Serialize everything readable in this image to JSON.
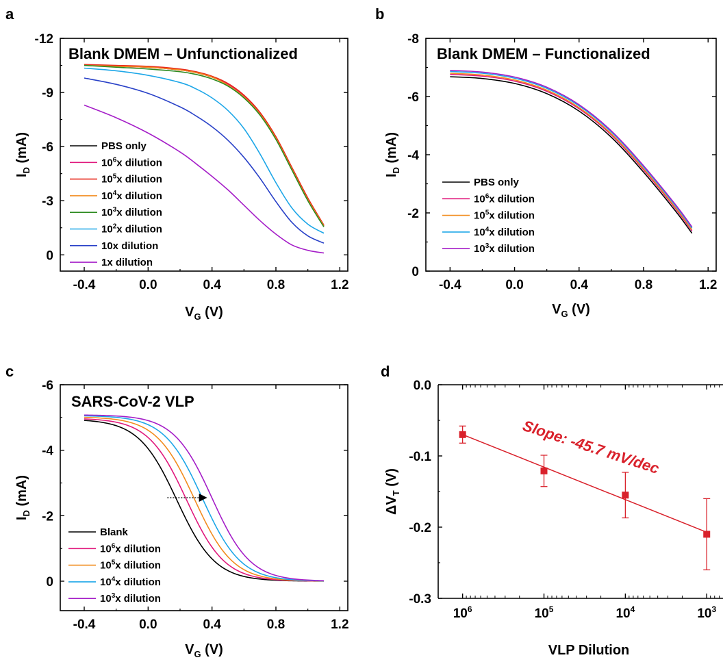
{
  "chart_data": [
    {
      "panel": "a",
      "type": "line",
      "title": "Blank DMEM – Unfunctionalized",
      "xlabel": "V",
      "xlabel_sub": "G",
      "xlabel_unit": "(V)",
      "ylabel": "I",
      "ylabel_sub": "D",
      "ylabel_unit": "(mA)",
      "xlim": [
        -0.55,
        1.25
      ],
      "ylim": [
        0.9,
        -12
      ],
      "xticks": [
        -0.4,
        0.0,
        0.4,
        0.8,
        1.2
      ],
      "xtick_labels": [
        "-0.4",
        "0.0",
        "0.4",
        "0.8",
        "1.2"
      ],
      "yticks": [
        0,
        -3,
        -6,
        -9,
        -12
      ],
      "ytick_labels": [
        "0",
        "-3",
        "-6",
        "-9",
        "-12"
      ],
      "legend_position": "bottom-left",
      "x": [
        -0.4,
        -0.2,
        0.0,
        0.2,
        0.3,
        0.4,
        0.5,
        0.6,
        0.7,
        0.8,
        0.9,
        1.0,
        1.1
      ],
      "series": [
        {
          "name": "PBS only",
          "base": "PBS only",
          "sup": "",
          "rest": "",
          "color": "#000000",
          "values": [
            -10.5,
            -10.45,
            -10.4,
            -10.25,
            -10.1,
            -9.85,
            -9.45,
            -8.8,
            -7.85,
            -6.5,
            -4.8,
            -3.1,
            -1.6
          ]
        },
        {
          "name": "10^6x dilution",
          "base": "10",
          "sup": "6",
          "rest": "x dilution",
          "color": "#e0197d",
          "values": [
            -10.5,
            -10.45,
            -10.4,
            -10.25,
            -10.1,
            -9.85,
            -9.45,
            -8.8,
            -7.85,
            -6.5,
            -4.8,
            -3.1,
            -1.6
          ]
        },
        {
          "name": "10^5x dilution",
          "base": "10",
          "sup": "5",
          "rest": "x dilution",
          "color": "#e8291c",
          "values": [
            -10.55,
            -10.5,
            -10.45,
            -10.3,
            -10.15,
            -9.9,
            -9.5,
            -8.85,
            -7.9,
            -6.55,
            -4.85,
            -3.15,
            -1.65
          ]
        },
        {
          "name": "10^4x dilution",
          "base": "10",
          "sup": "4",
          "rest": "x dilution",
          "color": "#f28c1e",
          "values": [
            -10.5,
            -10.45,
            -10.4,
            -10.25,
            -10.1,
            -9.85,
            -9.4,
            -8.75,
            -7.8,
            -6.45,
            -4.75,
            -3.05,
            -1.6
          ]
        },
        {
          "name": "10^3x dilution",
          "base": "10",
          "sup": "3",
          "rest": "x dilution",
          "color": "#2e8b20",
          "values": [
            -10.5,
            -10.4,
            -10.3,
            -10.15,
            -10.0,
            -9.75,
            -9.35,
            -8.7,
            -7.75,
            -6.4,
            -4.7,
            -3.0,
            -1.55
          ]
        },
        {
          "name": "10^2x dilution",
          "base": "10",
          "sup": "2",
          "rest": "x dilution",
          "color": "#1ea7e8",
          "values": [
            -10.35,
            -10.2,
            -9.95,
            -9.55,
            -9.2,
            -8.7,
            -8.0,
            -7.0,
            -5.6,
            -4.0,
            -2.6,
            -1.7,
            -1.2
          ]
        },
        {
          "name": "10x dilution",
          "base": "10x dilution",
          "sup": "",
          "rest": "",
          "color": "#2a42c8",
          "values": [
            -9.8,
            -9.45,
            -8.95,
            -8.2,
            -7.7,
            -7.1,
            -6.35,
            -5.4,
            -4.25,
            -2.95,
            -1.8,
            -1.05,
            -0.65
          ]
        },
        {
          "name": "1x dilution",
          "base": "1x dilution",
          "sup": "",
          "rest": "",
          "color": "#a51ec8",
          "values": [
            -8.3,
            -7.6,
            -6.75,
            -5.7,
            -5.05,
            -4.35,
            -3.6,
            -2.75,
            -1.9,
            -1.15,
            -0.55,
            -0.25,
            -0.1
          ]
        }
      ]
    },
    {
      "panel": "b",
      "type": "line",
      "title": "Blank DMEM – Functionalized",
      "xlabel": "V",
      "xlabel_sub": "G",
      "xlabel_unit": "(V)",
      "ylabel": "I",
      "ylabel_sub": "D",
      "ylabel_unit": "(mA)",
      "xlim": [
        -0.55,
        1.25
      ],
      "ylim": [
        0,
        -8
      ],
      "xticks": [
        -0.4,
        0.0,
        0.4,
        0.8,
        1.2
      ],
      "xtick_labels": [
        "-0.4",
        "0.0",
        "0.4",
        "0.8",
        "1.2"
      ],
      "yticks": [
        0,
        -2,
        -4,
        -6,
        -8
      ],
      "ytick_labels": [
        "0",
        "-2",
        "-4",
        "-6",
        "-8"
      ],
      "legend_position": "bottom-left",
      "x": [
        -0.4,
        -0.2,
        0.0,
        0.2,
        0.4,
        0.6,
        0.8,
        1.0,
        1.1
      ],
      "series": [
        {
          "name": "PBS only",
          "base": "PBS only",
          "sup": "",
          "rest": "",
          "color": "#000000",
          "values": [
            -6.68,
            -6.62,
            -6.45,
            -6.1,
            -5.5,
            -4.6,
            -3.4,
            -2.05,
            -1.3
          ]
        },
        {
          "name": "10^6x dilution",
          "base": "10",
          "sup": "6",
          "rest": "x dilution",
          "color": "#e0197d",
          "values": [
            -6.76,
            -6.7,
            -6.53,
            -6.18,
            -5.58,
            -4.68,
            -3.48,
            -2.13,
            -1.38
          ]
        },
        {
          "name": "10^5x dilution",
          "base": "10",
          "sup": "5",
          "rest": "x dilution",
          "color": "#f28c1e",
          "values": [
            -6.8,
            -6.74,
            -6.57,
            -6.22,
            -5.62,
            -4.72,
            -3.52,
            -2.17,
            -1.42
          ]
        },
        {
          "name": "10^4x dilution",
          "base": "10",
          "sup": "4",
          "rest": "x dilution",
          "color": "#1ea7e8",
          "values": [
            -6.86,
            -6.8,
            -6.63,
            -6.28,
            -5.68,
            -4.78,
            -3.58,
            -2.23,
            -1.48
          ]
        },
        {
          "name": "10^3x dilution",
          "base": "10",
          "sup": "3",
          "rest": "x dilution",
          "color": "#a51ec8",
          "values": [
            -6.9,
            -6.84,
            -6.67,
            -6.32,
            -5.72,
            -4.82,
            -3.62,
            -2.27,
            -1.52
          ]
        }
      ]
    },
    {
      "panel": "c",
      "type": "line",
      "title": "SARS-CoV-2 VLP",
      "xlabel": "V",
      "xlabel_sub": "G",
      "xlabel_unit": "(V)",
      "ylabel": "I",
      "ylabel_sub": "D",
      "ylabel_unit": "(mA)",
      "xlim": [
        -0.55,
        1.25
      ],
      "ylim": [
        0.9,
        -6
      ],
      "xticks": [
        -0.4,
        0.0,
        0.4,
        0.8,
        1.2
      ],
      "xtick_labels": [
        "-0.4",
        "0.0",
        "0.4",
        "0.8",
        "1.2"
      ],
      "yticks": [
        0,
        -2,
        -4,
        -6
      ],
      "ytick_labels": [
        "0",
        "-2",
        "-4",
        "-6"
      ],
      "legend_position": "bottom-left",
      "sigmoid_model": "I = -A / (1 + exp((V - V0)/k))",
      "x_range": [
        -0.4,
        1.1
      ],
      "arrow": {
        "x_start": 0.12,
        "x_end": 0.37,
        "y": -2.55
      },
      "series": [
        {
          "name": "Blank",
          "base": "Blank",
          "sup": "",
          "rest": "",
          "color": "#000000",
          "A": 4.95,
          "V0": 0.18,
          "k": 0.12
        },
        {
          "name": "10^6x dilution",
          "base": "10",
          "sup": "6",
          "rest": "x dilution",
          "color": "#e0197d",
          "A": 4.98,
          "V0": 0.24,
          "k": 0.12
        },
        {
          "name": "10^5x dilution",
          "base": "10",
          "sup": "5",
          "rest": "x dilution",
          "color": "#f28c1e",
          "A": 5.02,
          "V0": 0.29,
          "k": 0.12
        },
        {
          "name": "10^4x dilution",
          "base": "10",
          "sup": "4",
          "rest": "x dilution",
          "color": "#1ea7e8",
          "A": 5.06,
          "V0": 0.34,
          "k": 0.12
        },
        {
          "name": "10^3x dilution",
          "base": "10",
          "sup": "3",
          "rest": "x dilution",
          "color": "#a51ec8",
          "A": 5.08,
          "V0": 0.4,
          "k": 0.12
        }
      ]
    },
    {
      "panel": "d",
      "type": "scatter",
      "title": "",
      "xlabel": "VLP Dilution",
      "ylabel": "ΔV",
      "ylabel_sub": "T",
      "ylabel_unit": "(V)",
      "x_scale": "log, reversed",
      "xlim_log10": [
        6.3,
        2.8
      ],
      "ylim": [
        -0.3,
        0.0
      ],
      "yticks": [
        0.0,
        -0.1,
        -0.2,
        -0.3
      ],
      "ytick_labels": [
        "0.0",
        "-0.1",
        "-0.2",
        "-0.3"
      ],
      "xticks_log10": [
        6,
        5,
        4,
        3
      ],
      "xtick_bases": [
        "10",
        "10",
        "10",
        "10"
      ],
      "xtick_exps": [
        "6",
        "5",
        "4",
        "3"
      ],
      "points_color": "#d9212b",
      "points": [
        {
          "dilution": 1000000,
          "dVT": -0.07,
          "err": 0.012
        },
        {
          "dilution": 100000,
          "dVT": -0.121,
          "err": 0.022
        },
        {
          "dilution": 10000,
          "dVT": -0.155,
          "err": 0.032
        },
        {
          "dilution": 1000,
          "dVT": -0.21,
          "err": 0.05
        }
      ],
      "fit": {
        "slope_V_per_dec": -0.0457,
        "label": "Slope: -45.7 mV/dec"
      }
    }
  ]
}
